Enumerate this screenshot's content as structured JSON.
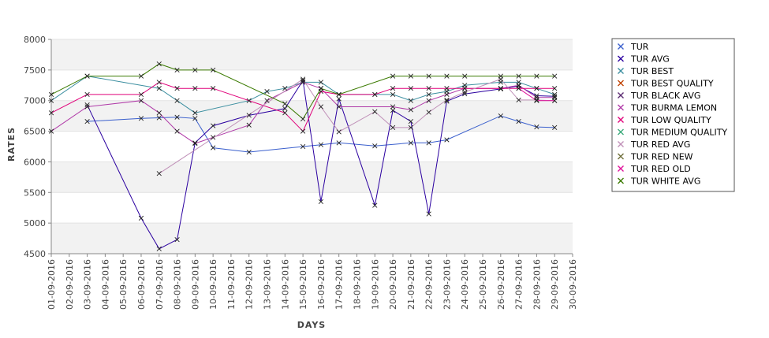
{
  "chart_data": {
    "type": "line",
    "title": "",
    "xlabel": "DAYS",
    "ylabel": "RATES",
    "ylim": [
      4500,
      8000
    ],
    "yticks": [
      4500,
      5000,
      5500,
      6000,
      6500,
      7000,
      7500,
      8000
    ],
    "categories": [
      "01-09-2016",
      "02-09-2016",
      "03-09-2016",
      "04-09-2016",
      "05-09-2016",
      "06-09-2016",
      "07-09-2016",
      "08-09-2016",
      "09-09-2016",
      "10-09-2016",
      "11-09-2016",
      "12-09-2016",
      "13-09-2016",
      "14-09-2016",
      "15-09-2016",
      "16-09-2016",
      "17-09-2016",
      "18-09-2016",
      "19-09-2016",
      "20-09-2016",
      "21-09-2016",
      "22-09-2016",
      "23-09-2016",
      "24-09-2016",
      "25-09-2016",
      "26-09-2016",
      "27-09-2016",
      "28-09-2016",
      "29-09-2016",
      "30-09-2016"
    ],
    "legend_position": "right",
    "series": [
      {
        "name": "TUR",
        "color": "#3a5fcd",
        "x": [
          2,
          5,
          6,
          7,
          8,
          9,
          11,
          14,
          15,
          16,
          18,
          20,
          21,
          22,
          25,
          26,
          27,
          28
        ],
        "values": [
          6660,
          6710,
          6720,
          6730,
          6710,
          6230,
          6160,
          6250,
          6280,
          6310,
          6260,
          6310,
          6310,
          6360,
          6750,
          6660,
          6570,
          6560
        ]
      },
      {
        "name": "TUR AVG",
        "color": "#2b00a0",
        "x": [
          2,
          5,
          6,
          7,
          8,
          9,
          11,
          13,
          14,
          15,
          16,
          18,
          19,
          20,
          21,
          22,
          23,
          25,
          26,
          27,
          28
        ],
        "values": [
          6930,
          5080,
          4580,
          4730,
          6310,
          6590,
          6760,
          6870,
          7330,
          5350,
          7030,
          5290,
          6840,
          6660,
          5150,
          6990,
          7110,
          7190,
          7240,
          7080,
          7070
        ]
      },
      {
        "name": "TUR BEST",
        "color": "#3c8fa0",
        "x": [
          0,
          2,
          6,
          7,
          8,
          11,
          12,
          13,
          14,
          15,
          16,
          18,
          19,
          20,
          21,
          22,
          23,
          25,
          26,
          27,
          28
        ],
        "values": [
          7000,
          7400,
          7200,
          7000,
          6800,
          7000,
          7150,
          7200,
          7300,
          7300,
          7100,
          7100,
          7100,
          7000,
          7100,
          7150,
          7250,
          7300,
          7300,
          7200,
          7100
        ]
      },
      {
        "name": "TUR BEST QUALITY",
        "color": "#c04000",
        "x": [],
        "values": []
      },
      {
        "name": "TUR BLACK AVG",
        "color": "#5a2a70",
        "x": [],
        "values": []
      },
      {
        "name": "TUR BURMA LEMON",
        "color": "#b03aa8",
        "x": [
          0,
          2,
          5,
          6,
          7,
          8,
          9,
          11,
          12,
          14,
          15,
          16,
          19,
          20,
          21,
          22,
          23,
          25,
          26,
          27,
          28
        ],
        "values": [
          6500,
          6900,
          7000,
          6800,
          6500,
          6300,
          6400,
          6600,
          7000,
          7300,
          7200,
          6900,
          6900,
          6850,
          7000,
          7100,
          7200,
          7200,
          7250,
          7050,
          7050
        ]
      },
      {
        "name": "TUR LOW QUALITY",
        "color": "#e0007a",
        "x": [
          0,
          2,
          5,
          6,
          7,
          8,
          9,
          13,
          14,
          15,
          16,
          18,
          19,
          20,
          21,
          22,
          23,
          25,
          26,
          27,
          28
        ],
        "values": [
          6800,
          7100,
          7100,
          7300,
          7200,
          7200,
          7200,
          6800,
          6500,
          7150,
          7100,
          7100,
          7200,
          7200,
          7200,
          7200,
          7200,
          7200,
          7200,
          7200,
          7200
        ]
      },
      {
        "name": "TUR MEDIUM QUALITY",
        "color": "#3aaa7a",
        "x": [],
        "values": []
      },
      {
        "name": "TUR RED AVG",
        "color": "#c090b8",
        "x": [
          6,
          14,
          15,
          16,
          18,
          19,
          20,
          21,
          22,
          23,
          25,
          26,
          27,
          28
        ],
        "values": [
          5810,
          7350,
          6900,
          6490,
          6820,
          6560,
          6560,
          6810,
          7010,
          7140,
          7350,
          7010,
          7010,
          7000
        ]
      },
      {
        "name": "TUR RED NEW",
        "color": "#6e6e3a",
        "x": [],
        "values": []
      },
      {
        "name": "TUR RED OLD",
        "color": "#e0109a",
        "x": [
          26,
          27,
          28
        ],
        "values": [
          7200,
          7000,
          7000
        ]
      },
      {
        "name": "TUR WHITE AVG",
        "color": "#3a7a00",
        "x": [
          0,
          2,
          5,
          6,
          7,
          8,
          9,
          13,
          14,
          15,
          16,
          19,
          20,
          21,
          22,
          23,
          25,
          26,
          27,
          28
        ],
        "values": [
          7100,
          7400,
          7400,
          7600,
          7500,
          7500,
          7500,
          6950,
          6700,
          7200,
          7100,
          7400,
          7400,
          7400,
          7400,
          7400,
          7400,
          7400,
          7400,
          7400
        ]
      }
    ]
  }
}
